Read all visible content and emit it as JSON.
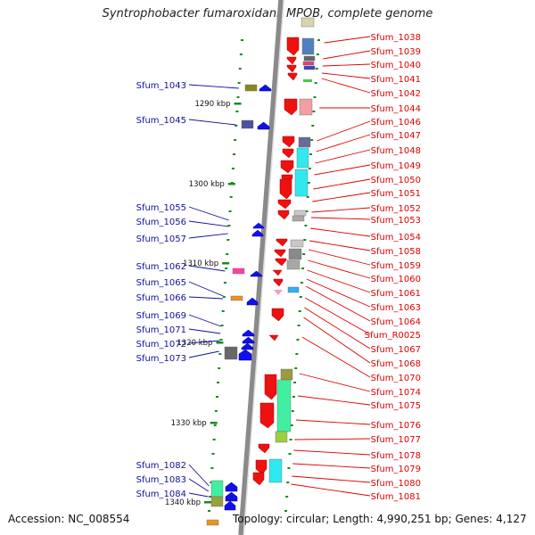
{
  "title": "Syntrophobacter fumaroxidans MPOB, complete genome",
  "footer": {
    "accession": "Accession: NC_008554",
    "topology": "Topology: circular; Length: 4,990,251 bp; Genes: 4,127"
  },
  "colors": {
    "left_label": "#1010a0",
    "right_label": "#e00000",
    "rna_label": "#ee80c0",
    "tick": "#1a8a1a"
  },
  "kbp_ticks": [
    {
      "label": "1290 kbp"
    },
    {
      "label": "1300 kbp"
    },
    {
      "label": "1310 kbp"
    },
    {
      "label": "1320 kbp"
    },
    {
      "label": "1330 kbp"
    },
    {
      "label": "1340 kbp"
    }
  ],
  "left_genes": [
    {
      "label": "Sfum_1043"
    },
    {
      "label": "Sfum_1045"
    },
    {
      "label": "Sfum_1055"
    },
    {
      "label": "Sfum_1056"
    },
    {
      "label": "Sfum_1057"
    },
    {
      "label": "Sfum_1062"
    },
    {
      "label": "Sfum_1065"
    },
    {
      "label": "Sfum_1066"
    },
    {
      "label": "Sfum_1069"
    },
    {
      "label": "Sfum_1071"
    },
    {
      "label": "Sfum_1072"
    },
    {
      "label": "Sfum_1073"
    },
    {
      "label": "Sfum_1082"
    },
    {
      "label": "Sfum_1083"
    },
    {
      "label": "Sfum_1084"
    }
  ],
  "right_genes": [
    {
      "label": "Sfum_1038"
    },
    {
      "label": "Sfum_1039"
    },
    {
      "label": "Sfum_1040"
    },
    {
      "label": "Sfum_1041"
    },
    {
      "label": "Sfum_1042"
    },
    {
      "label": "Sfum_1044"
    },
    {
      "label": "Sfum_1046"
    },
    {
      "label": "Sfum_1047"
    },
    {
      "label": "Sfum_1048"
    },
    {
      "label": "Sfum_1049"
    },
    {
      "label": "Sfum_1050"
    },
    {
      "label": "Sfum_1051"
    },
    {
      "label": "Sfum_1052"
    },
    {
      "label": "Sfum_1053"
    },
    {
      "label": "Sfum_1054"
    },
    {
      "label": "Sfum_1058"
    },
    {
      "label": "Sfum_1059"
    },
    {
      "label": "Sfum_1060"
    },
    {
      "label": "Sfum_1061"
    },
    {
      "label": "Sfum_1063"
    },
    {
      "label": "Sfum_1064"
    },
    {
      "label": "Sfum_R0025"
    },
    {
      "label": "Sfum_1067"
    },
    {
      "label": "Sfum_1068"
    },
    {
      "label": "Sfum_1070"
    },
    {
      "label": "Sfum_1074"
    },
    {
      "label": "Sfum_1075"
    },
    {
      "label": "Sfum_1076"
    },
    {
      "label": "Sfum_1077"
    },
    {
      "label": "Sfum_1078"
    },
    {
      "label": "Sfum_1079"
    },
    {
      "label": "Sfum_1080"
    },
    {
      "label": "Sfum_1081"
    }
  ]
}
